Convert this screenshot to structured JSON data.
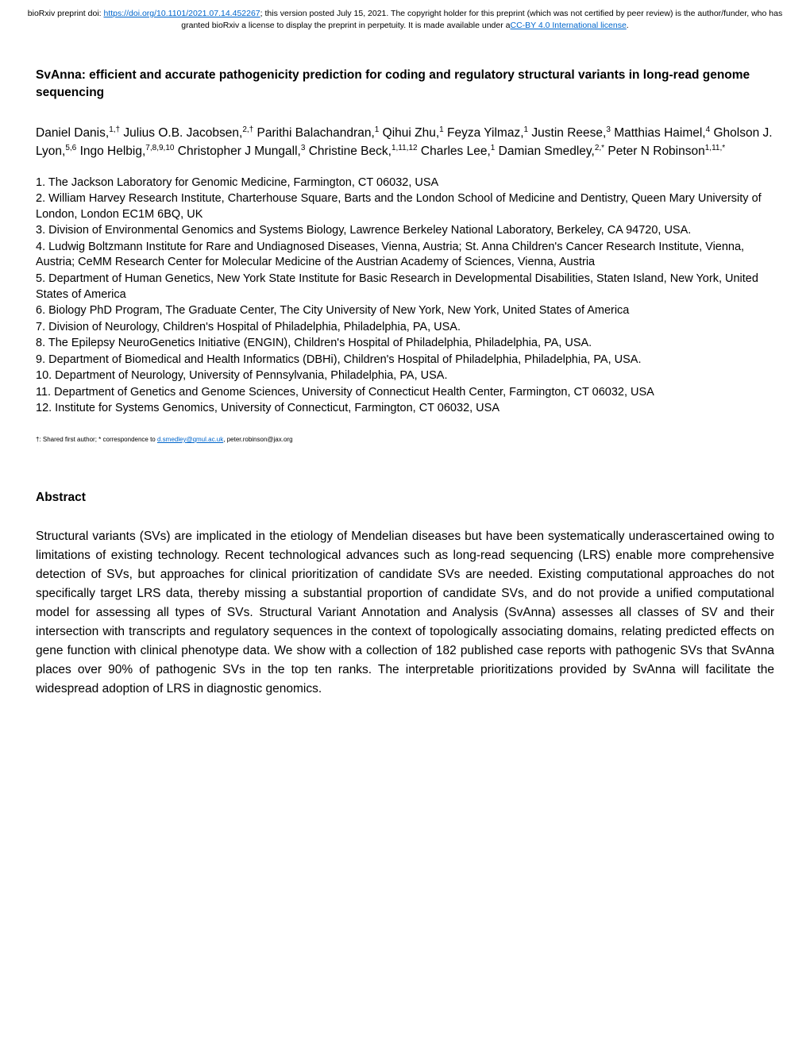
{
  "banner": {
    "prefix": "bioRxiv preprint doi: ",
    "doi_url": "https://doi.org/10.1101/2021.07.14.452267",
    "middle": "; this version posted July 15, 2021. The copyright holder for this preprint (which was not certified by peer review) is the author/funder, who has granted bioRxiv a license to display the preprint in perpetuity. It is made available under a",
    "license_text": "CC-BY 4.0 International license",
    "suffix": ".",
    "doi_color": "#0066cc",
    "license_color": "#0066cc",
    "fontsize": 10.5
  },
  "title": {
    "text": "SvAnna: efficient and accurate pathogenicity prediction for coding and regulatory structural variants in long-read genome sequencing",
    "fontsize": 15.5,
    "fontweight": "bold"
  },
  "authors": {
    "a1_name": "Daniel Danis,",
    "a1_sup": "1,†",
    "a2_name": " Julius O.B. Jacobsen,",
    "a2_sup": "2,†",
    "a3_name": " Parithi Balachandran,",
    "a3_sup": "1",
    "a4_name": " Qihui Zhu,",
    "a4_sup": "1",
    "a5_name": " Feyza Yilmaz,",
    "a5_sup": "1",
    "a6_name": " Justin Reese,",
    "a6_sup": "3",
    "a7_name": " Matthias Haimel,",
    "a7_sup": "4",
    "a8_name": " Gholson J. Lyon,",
    "a8_sup": "5,6",
    "a9_name": " Ingo Helbig,",
    "a9_sup": "7,8,9,10",
    "a10_name": " Christopher J Mungall,",
    "a10_sup": "3",
    "a11_name": " Christine Beck,",
    "a11_sup": "1,11,12",
    "a12_name": " Charles Lee,",
    "a12_sup": "1",
    "a13_name": " Damian Smedley,",
    "a13_sup": "2,*",
    "a14_name": " Peter N Robinson",
    "a14_sup": "1,11,*",
    "fontsize": 15.5
  },
  "affiliations": {
    "aff1": "1. The Jackson Laboratory for Genomic Medicine, Farmington, CT 06032, USA",
    "aff2": "2. William Harvey Research Institute, Charterhouse Square, Barts and the London School of Medicine and Dentistry, Queen Mary University of London, London EC1M 6BQ, UK",
    "aff3": "3. Division of Environmental Genomics and Systems Biology, Lawrence Berkeley National Laboratory, Berkeley, CA 94720, USA.",
    "aff4": "4. Ludwig Boltzmann Institute for Rare and Undiagnosed Diseases, Vienna, Austria; St. Anna Children's Cancer Research Institute, Vienna, Austria; CeMM Research Center for Molecular Medicine of the Austrian Academy of Sciences, Vienna, Austria",
    "aff5": "5. Department of Human Genetics, New York State Institute for Basic Research in Developmental Disabilities, Staten Island, New York, United States of America",
    "aff6": "6. Biology PhD Program, The Graduate Center, The City University of New York, New York, United States of America",
    "aff7": "7. Division of Neurology, Children's Hospital of Philadelphia, Philadelphia, PA, USA.",
    "aff8": "8. The Epilepsy NeuroGenetics Initiative (ENGIN), Children's Hospital of Philadelphia, Philadelphia, PA, USA.",
    "aff9": "9. Department of Biomedical and Health Informatics (DBHi), Children's Hospital of Philadelphia, Philadelphia, PA, USA.",
    "aff10": "10. Department of Neurology, University of Pennsylvania, Philadelphia, PA, USA.",
    "aff11": "11. Department of Genetics and Genome Sciences, University of Connecticut Health Center, Farmington, CT 06032, USA",
    "aff12": "12. Institute for Systems Genomics, University of Connecticut, Farmington, CT 06032, USA",
    "fontsize": 14.5
  },
  "correspondence": {
    "prefix": "†: Shared first author; * correspondence to ",
    "email1": "d.smedley@qmul.ac.uk",
    "middle": ", peter.robinson@jax.org",
    "fontsize": 8,
    "link_color": "#0066cc"
  },
  "abstract": {
    "heading": "Abstract",
    "text": "Structural variants (SVs) are implicated in the etiology of Mendelian diseases but have been systematically underascertained owing to limitations of existing technology. Recent technological advances such as long-read sequencing (LRS) enable more comprehensive detection of SVs, but approaches for clinical prioritization of candidate SVs are needed. Existing computational approaches do not specifically target LRS data, thereby missing a substantial proportion of candidate SVs, and do not provide a unified computational model for assessing all types of SVs. Structural Variant Annotation and Analysis (SvAnna) assesses all classes of SV and their intersection with transcripts and regulatory sequences in the context of topologically associating domains, relating predicted effects on gene function with clinical phenotype data. We show with a collection of 182 published case reports with pathogenic SVs that SvAnna places over 90% of pathogenic SVs in the top ten ranks. The interpretable prioritizations provided by SvAnna will facilitate the widespread adoption of LRS in diagnostic genomics.",
    "heading_fontsize": 15.5,
    "text_fontsize": 15.5
  },
  "colors": {
    "background": "#ffffff",
    "text": "#000000",
    "link": "#0066cc"
  }
}
